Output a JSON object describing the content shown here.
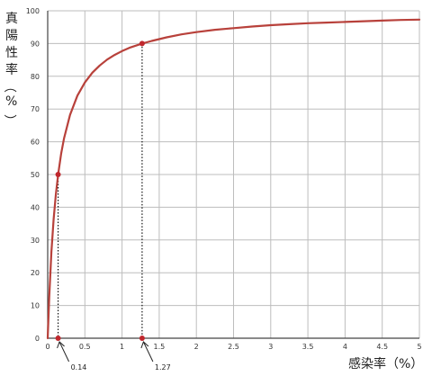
{
  "chart_data": {
    "type": "line",
    "title": "",
    "ylabel": "真陽性率（%）",
    "xlabel": "感染率（%）",
    "xlim": [
      0,
      5
    ],
    "ylim": [
      0,
      100
    ],
    "x_ticks": [
      "0",
      "0.5",
      "1",
      "1.5",
      "2",
      "2.5",
      "3",
      "3.5",
      "4",
      "4.5",
      "5"
    ],
    "y_ticks": [
      "0",
      "10",
      "20",
      "30",
      "40",
      "50",
      "60",
      "70",
      "80",
      "90",
      "100"
    ],
    "grid": true,
    "series": [
      {
        "color": "#b8413b",
        "x": [
          0,
          0.02,
          0.05,
          0.08,
          0.11,
          0.14,
          0.18,
          0.22,
          0.3,
          0.4,
          0.5,
          0.6,
          0.7,
          0.8,
          0.9,
          1.0,
          1.1,
          1.27,
          1.4,
          1.6,
          1.8,
          2.0,
          2.25,
          2.5,
          2.75,
          3.0,
          3.25,
          3.5,
          3.75,
          4.0,
          4.25,
          4.5,
          4.75,
          5.0
        ],
        "y": [
          0,
          12.5,
          26.3,
          36.4,
          44,
          50,
          56.3,
          61.1,
          68.2,
          74.1,
          78.1,
          81.1,
          83.3,
          85.1,
          86.5,
          87.7,
          88.7,
          90,
          90.8,
          91.9,
          92.8,
          93.5,
          94.2,
          94.7,
          95.2,
          95.6,
          95.9,
          96.2,
          96.4,
          96.6,
          96.8,
          97,
          97.2,
          97.3
        ]
      }
    ],
    "highlight_points": [
      {
        "x": 0.14,
        "y": 50,
        "label": "0.14"
      },
      {
        "x": 1.27,
        "y": 90,
        "label": "1.27"
      }
    ]
  },
  "colors": {
    "line": "#b8413b",
    "marker": "#c0272d",
    "grid": "#bdbdbd",
    "axis": "#444444"
  }
}
